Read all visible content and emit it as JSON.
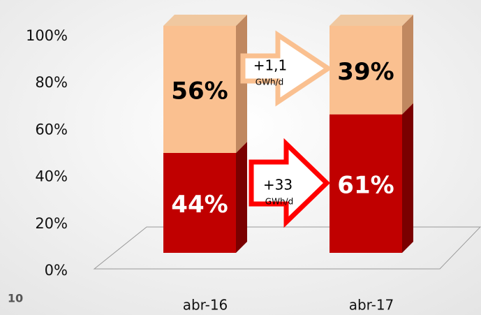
{
  "chart_data": {
    "type": "stacked_bar_3d",
    "categories": [
      "abr-16",
      "abr-17"
    ],
    "series": [
      {
        "color": "#c00000",
        "side": "#7a0000",
        "top": "#d83030",
        "text_color": "#ffffff",
        "values": [
          44,
          61
        ],
        "value_labels": [
          "44%",
          "61%"
        ]
      },
      {
        "color": "#fac090",
        "side": "#c08860",
        "top": "#f0c8a0",
        "text_color": "#000000",
        "values": [
          56,
          39
        ],
        "value_labels": [
          "56%",
          "39%"
        ]
      }
    ],
    "ylim": [
      0,
      100
    ],
    "yticks": [
      {
        "value": 0,
        "label": "0%"
      },
      {
        "value": 20,
        "label": "20%"
      },
      {
        "value": 40,
        "label": "40%"
      },
      {
        "value": 60,
        "label": "60%"
      },
      {
        "value": 80,
        "label": "80%"
      },
      {
        "value": 100,
        "label": "100%"
      }
    ],
    "annotations": [
      {
        "text": "+1,1",
        "unit": "GWh/d"
      },
      {
        "text": "+33",
        "unit": "GWh/d"
      }
    ],
    "page_number": "10"
  }
}
